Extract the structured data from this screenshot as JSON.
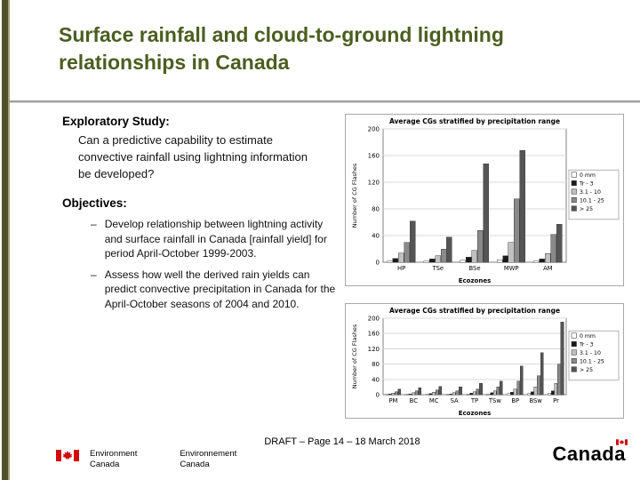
{
  "slide": {
    "title_line1": "Surface rainfall and cloud-to-ground lightning",
    "title_line2": "relationships in Canada",
    "exploratory_heading": "Exploratory Study:",
    "exploratory_text": "Can a predictive capability to estimate convective rainfall using lightning information be developed?",
    "objectives_heading": "Objectives:",
    "objectives": [
      "Develop relationship between lightning activity and surface rainfall in Canada [rainfall yield] for period April-October 1999-2003.",
      "Assess how well the derived rain yields can predict convective precipitation in Canada for the April-October seasons of 2004 and 2010."
    ]
  },
  "footer": {
    "draft": "DRAFT – Page 14 – 18 March 2018",
    "ec_en_line1": "Environment",
    "ec_en_line2": "Canada",
    "ec_fr_line1": "Environnement",
    "ec_fr_line2": "Canada",
    "wordmark": "Canada",
    "flag_color": "#d3080c"
  },
  "chart_data": [
    {
      "type": "bar",
      "title": "Average CGs stratified by precipitation range",
      "xlabel": "Ecozones",
      "ylabel": "Number of CG Flashes",
      "ylim": [
        0,
        200
      ],
      "yticks": [
        0,
        40,
        80,
        120,
        160,
        200
      ],
      "grid": true,
      "legend_position": "right",
      "categories": [
        "HP",
        "TSe",
        "BSe",
        "MWP",
        "AM"
      ],
      "series": [
        {
          "name": "0 mm",
          "color": "#ffffff",
          "values": [
            2,
            2,
            3,
            4,
            2
          ]
        },
        {
          "name": "Tr - 3",
          "color": "#1a1a1a",
          "values": [
            6,
            5,
            8,
            10,
            5
          ]
        },
        {
          "name": "3.1 - 10",
          "color": "#c0c0c0",
          "values": [
            14,
            10,
            18,
            30,
            13
          ]
        },
        {
          "name": "10.1 - 25",
          "color": "#8a8a8a",
          "values": [
            30,
            20,
            48,
            95,
            42
          ]
        },
        {
          "name": "> 25",
          "color": "#555555",
          "values": [
            62,
            38,
            148,
            168,
            57
          ]
        }
      ]
    },
    {
      "type": "bar",
      "title": "Average CGs stratified by precipitation range",
      "xlabel": "Ecozones",
      "ylabel": "Number of CG Flashes",
      "ylim": [
        0,
        200
      ],
      "yticks": [
        0,
        40,
        80,
        120,
        160,
        200
      ],
      "grid": true,
      "legend_position": "right",
      "categories": [
        "PM",
        "BC",
        "MC",
        "SA",
        "TP",
        "TSw",
        "BP",
        "BSw",
        "Pr"
      ],
      "series": [
        {
          "name": "0 mm",
          "color": "#ffffff",
          "values": [
            1,
            1,
            1,
            1,
            2,
            2,
            3,
            3,
            4
          ]
        },
        {
          "name": "Tr - 3",
          "color": "#1a1a1a",
          "values": [
            2,
            2,
            3,
            2,
            4,
            5,
            6,
            8,
            10
          ]
        },
        {
          "name": "3.1 - 10",
          "color": "#c0c0c0",
          "values": [
            4,
            5,
            6,
            5,
            8,
            10,
            15,
            20,
            30
          ]
        },
        {
          "name": "10.1 - 25",
          "color": "#8a8a8a",
          "values": [
            8,
            10,
            12,
            10,
            15,
            20,
            35,
            50,
            80
          ]
        },
        {
          "name": "> 25",
          "color": "#555555",
          "values": [
            15,
            18,
            22,
            20,
            30,
            35,
            75,
            110,
            190
          ]
        }
      ]
    }
  ]
}
